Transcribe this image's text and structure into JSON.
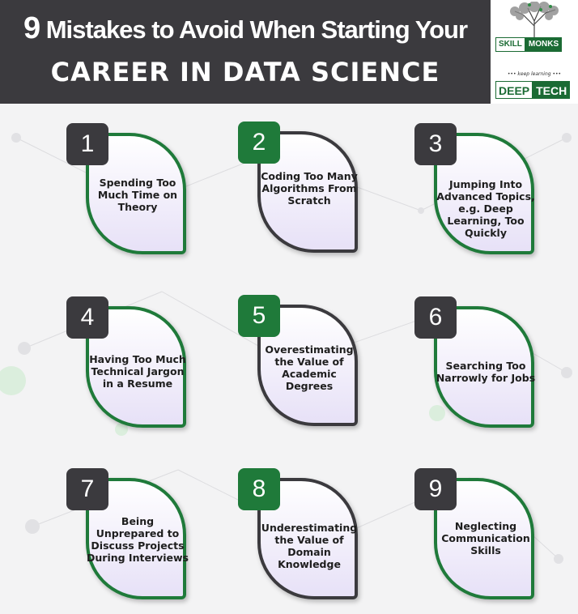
{
  "header": {
    "title_number": "9",
    "title_line1": "Mistakes to Avoid When Starting Your",
    "title_line2": "CAREER IN DATA SCIENCE"
  },
  "logo": {
    "brand_part1": "SKILL",
    "brand_part2": "MONKS",
    "tagline": "••• keep learning •••",
    "deep": "DEEP",
    "tech": "TECH"
  },
  "colors": {
    "dark": "#3b3a3e",
    "green": "#1f7a3a",
    "leaf_fill": "#e7e1f7"
  },
  "items": [
    {
      "number": "1",
      "text": "Spending Too Much Time on Theory"
    },
    {
      "number": "2",
      "text": "Coding Too Many Algorithms From Scratch"
    },
    {
      "number": "3",
      "text": "Jumping Into Advanced Topics, e.g. Deep Learning, Too Quickly"
    },
    {
      "number": "4",
      "text": "Having Too Much Technical Jargon in a Resume"
    },
    {
      "number": "5",
      "text": "Overestimating the Value of Academic Degrees"
    },
    {
      "number": "6",
      "text": "Searching Too Narrowly for Jobs"
    },
    {
      "number": "7",
      "text": "Being Unprepared to Discuss Projects During Interviews"
    },
    {
      "number": "8",
      "text": "Underestimating the Value of Domain Knowledge"
    },
    {
      "number": "9",
      "text": "Neglecting Communication Skills"
    }
  ]
}
